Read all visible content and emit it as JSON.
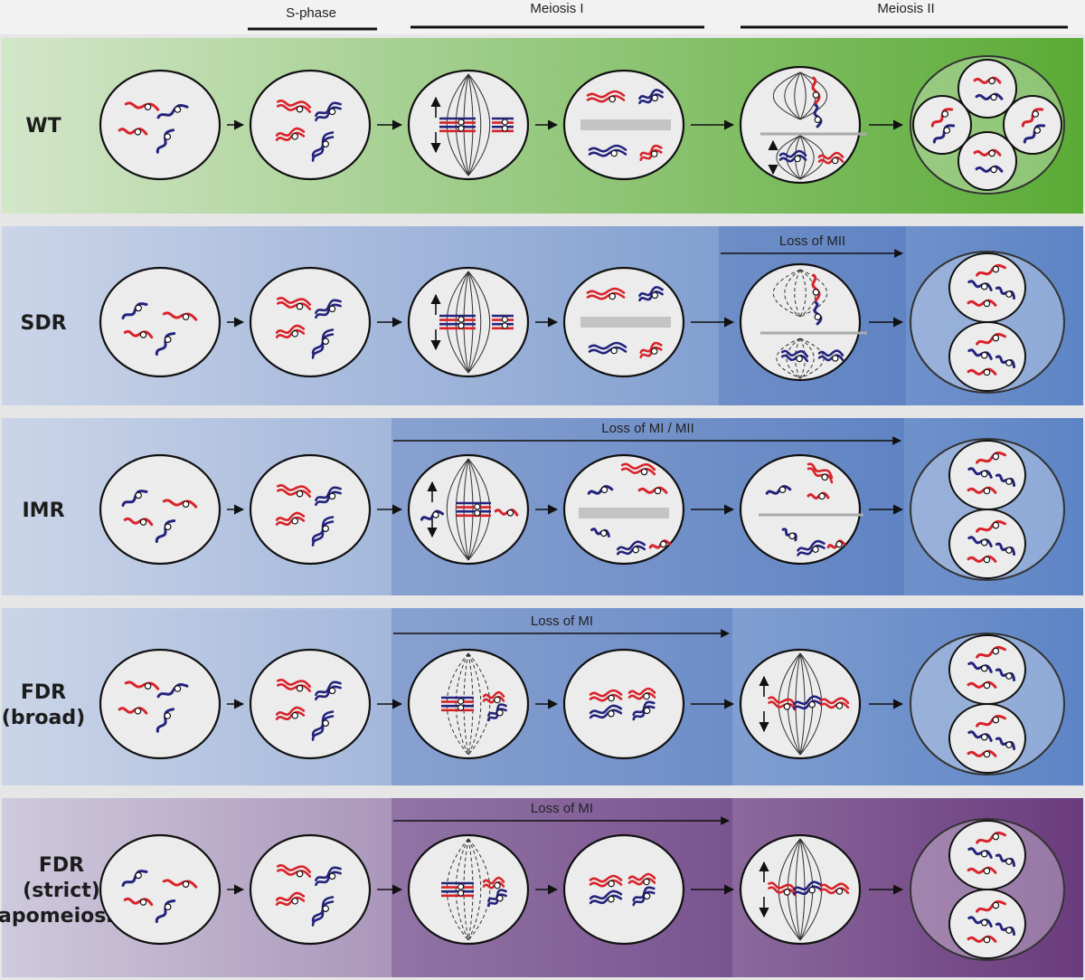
{
  "phases": [
    {
      "label": "S-phase"
    },
    {
      "label": "Meiosis I"
    },
    {
      "label": "Meiosis II"
    }
  ],
  "rows": [
    {
      "label_lines": [
        "WT"
      ],
      "band_label": "",
      "theme": "green",
      "cells": [
        "scatter_a",
        "scatter_b",
        "mi_spindle",
        "mi_split",
        "mii_spindles",
        "tetrad"
      ]
    },
    {
      "label_lines": [
        "SDR"
      ],
      "band_label": "Loss of MII",
      "theme": "blue",
      "cells": [
        "scatter_c",
        "scatter_b",
        "mi_spindle",
        "mi_split",
        "mii_dashed",
        "dyad"
      ]
    },
    {
      "label_lines": [
        "IMR"
      ],
      "band_label": "Loss of MI / MII",
      "theme": "blue",
      "cells": [
        "scatter_c",
        "scatter_b",
        "mi_imr",
        "imr_split",
        "imr_line",
        "dyad"
      ]
    },
    {
      "label_lines": [
        "FDR",
        "(broad)"
      ],
      "band_label": "Loss of MI",
      "theme": "blue",
      "cells": [
        "scatter_a",
        "scatter_b",
        "mi_dashed",
        "pairs",
        "mii_single",
        "dyad"
      ]
    },
    {
      "label_lines": [
        "FDR",
        "(strict)",
        "-apomeiosis-"
      ],
      "band_label": "Loss of MI",
      "theme": "purple",
      "cells": [
        "scatter_c",
        "scatter_b",
        "mi_dashed",
        "pairs",
        "mii_single",
        "dyad"
      ]
    }
  ],
  "colors": {
    "maternal": "#d8232a",
    "paternal": "#23237e",
    "cell_fill": "#ececec",
    "green_light": "#cfe3c4",
    "green_dark": "#5fae3a",
    "blue_light": "#c8d2e6",
    "blue_dark": "#5f86c6",
    "purple_light": "#cdc8dc",
    "purple_dark": "#6b3e7e"
  }
}
